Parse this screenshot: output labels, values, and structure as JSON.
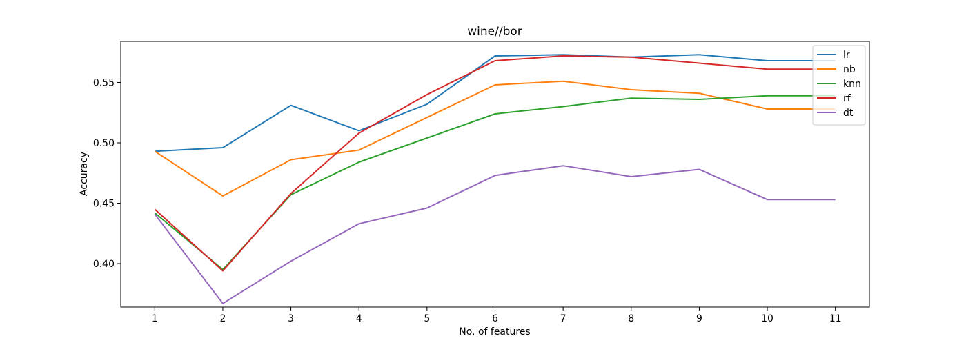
{
  "chart_data": {
    "type": "line",
    "title": "wine//bor",
    "xlabel": "No. of features",
    "ylabel": "Accuracy",
    "x": [
      1,
      2,
      3,
      4,
      5,
      6,
      7,
      8,
      9,
      10,
      11
    ],
    "xticks": [
      "1",
      "2",
      "3",
      "4",
      "5",
      "6",
      "7",
      "8",
      "9",
      "10",
      "11"
    ],
    "yticks": [
      "0.40",
      "0.45",
      "0.50",
      "0.55"
    ],
    "xlim": [
      0.5,
      11.5
    ],
    "ylim": [
      0.364,
      0.584
    ],
    "grid": false,
    "legend_position": "upper right",
    "series": [
      {
        "name": "lr",
        "color": "#1f77b4",
        "values": [
          0.493,
          0.496,
          0.531,
          0.51,
          0.532,
          0.572,
          0.573,
          0.571,
          0.573,
          0.568,
          0.568
        ]
      },
      {
        "name": "nb",
        "color": "#ff7f0e",
        "values": [
          0.493,
          0.456,
          0.486,
          0.494,
          0.521,
          0.548,
          0.551,
          0.544,
          0.541,
          0.528,
          0.528
        ]
      },
      {
        "name": "knn",
        "color": "#2ca02c",
        "values": [
          0.442,
          0.395,
          0.457,
          0.484,
          0.504,
          0.524,
          0.53,
          0.537,
          0.536,
          0.539,
          0.539
        ]
      },
      {
        "name": "rf",
        "color": "#d62728",
        "values": [
          0.445,
          0.394,
          0.458,
          0.508,
          0.54,
          0.568,
          0.572,
          0.571,
          0.566,
          0.561,
          0.561
        ]
      },
      {
        "name": "dt",
        "color": "#9467bd",
        "values": [
          0.441,
          0.367,
          0.402,
          0.433,
          0.446,
          0.473,
          0.481,
          0.472,
          0.478,
          0.453,
          0.453
        ]
      }
    ]
  }
}
